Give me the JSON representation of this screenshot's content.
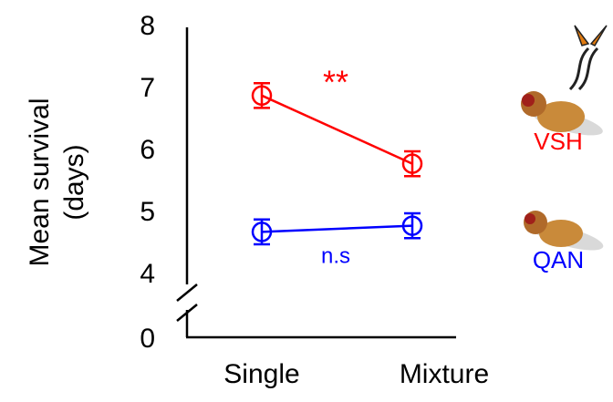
{
  "chart_data": {
    "type": "line",
    "ylabel": [
      "Mean survival",
      "(days)"
    ],
    "categories": [
      "Single",
      "Mixture"
    ],
    "ylim": [
      0,
      8
    ],
    "yticks": [
      0,
      4,
      5,
      6,
      7,
      8
    ],
    "axis_break": [
      0,
      4
    ],
    "series": [
      {
        "name": "VSH",
        "color": "#ff0000",
        "values": [
          6.9,
          5.8
        ],
        "errors": [
          0.2,
          0.2
        ]
      },
      {
        "name": "QAN",
        "color": "#0000ff",
        "values": [
          4.7,
          4.8
        ],
        "errors": [
          0.2,
          0.2
        ]
      }
    ],
    "annotations": [
      {
        "text": "**",
        "color": "#ff0000"
      },
      {
        "text": "n.s",
        "color": "#0000ff"
      }
    ]
  }
}
